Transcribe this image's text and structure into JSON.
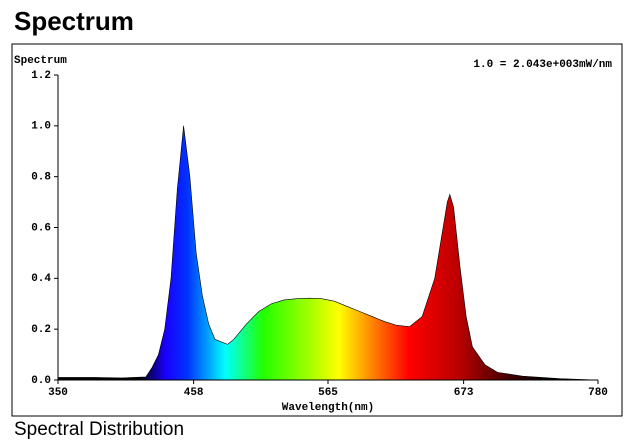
{
  "title": "Spectrum",
  "footer": "Spectral Distribution",
  "chart_data": {
    "type": "area",
    "ylabel": "Spectrum",
    "xlabel": "Wavelength(nm)",
    "annotation": "1.0 = 2.043e+003mW/nm",
    "x": [
      350,
      380,
      400,
      420,
      425,
      430,
      435,
      440,
      445,
      450,
      455,
      460,
      465,
      470,
      475,
      485,
      490,
      500,
      510,
      520,
      530,
      540,
      550,
      560,
      570,
      580,
      590,
      600,
      610,
      620,
      630,
      640,
      650,
      655,
      660,
      662,
      665,
      670,
      675,
      680,
      690,
      700,
      720,
      750,
      780
    ],
    "values": [
      0.01,
      0.01,
      0.008,
      0.012,
      0.05,
      0.1,
      0.2,
      0.4,
      0.75,
      1.0,
      0.8,
      0.5,
      0.33,
      0.22,
      0.16,
      0.14,
      0.16,
      0.22,
      0.27,
      0.3,
      0.315,
      0.32,
      0.322,
      0.32,
      0.31,
      0.29,
      0.27,
      0.25,
      0.23,
      0.215,
      0.21,
      0.25,
      0.4,
      0.55,
      0.7,
      0.73,
      0.68,
      0.45,
      0.25,
      0.13,
      0.06,
      0.03,
      0.015,
      0.005,
      0
    ],
    "xlim": [
      350,
      780
    ],
    "ylim": [
      0,
      1.2
    ],
    "xticks": [
      350,
      458,
      565,
      673,
      780
    ],
    "yticks": [
      {
        "value": 0,
        "label": "0.0"
      },
      0.2,
      0.4,
      0.6,
      0.8,
      {
        "value": 1,
        "label": "1.0"
      },
      1.2
    ]
  }
}
